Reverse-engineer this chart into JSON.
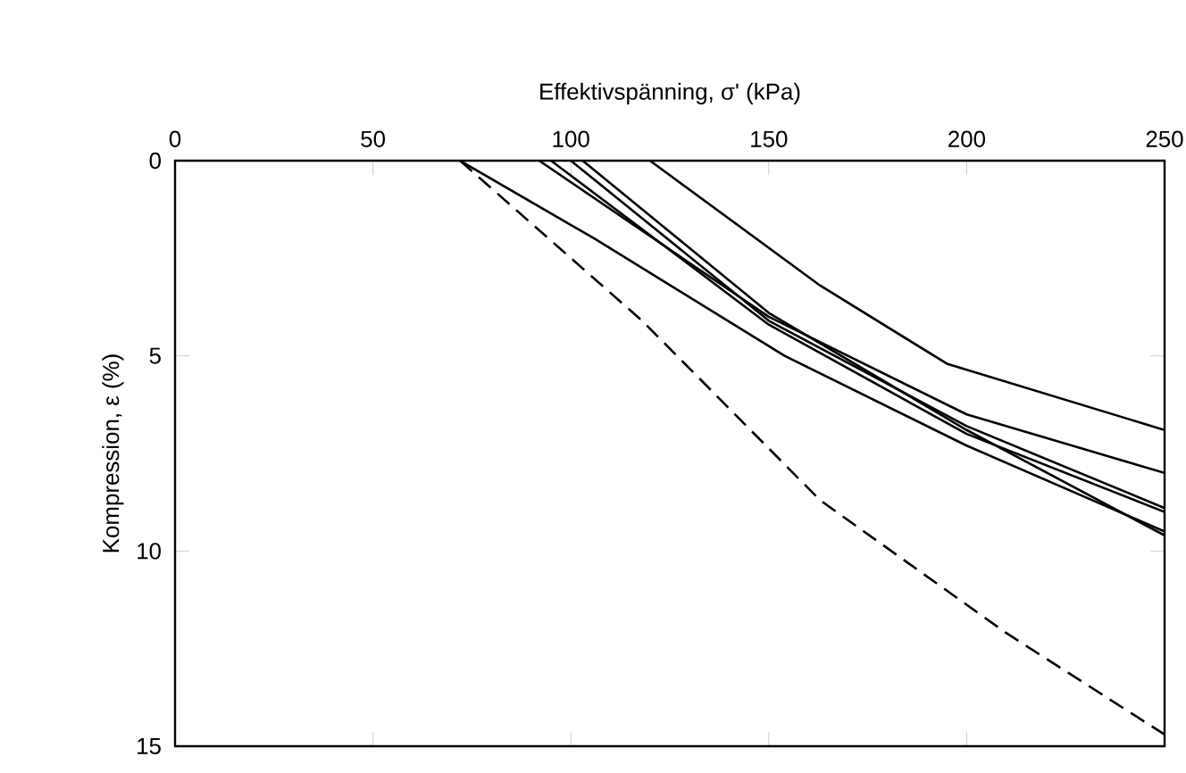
{
  "chart_data": {
    "type": "line",
    "xlabel": "Effektivspänning, σ' (kPa)",
    "ylabel": "Kompression, ε (%)",
    "xlim": [
      0,
      250
    ],
    "ylim": [
      15,
      0
    ],
    "xticks": [
      0,
      50,
      100,
      150,
      200,
      250
    ],
    "yticks": [
      0,
      5,
      10,
      15
    ],
    "marker": "none",
    "line_style": "solid",
    "series": [
      {
        "color": "#000000",
        "line_style": "dashed",
        "x": [
          72,
          118,
          163,
          210,
          250
        ],
        "values": [
          0,
          4.1,
          8.7,
          12.1,
          14.7
        ]
      },
      {
        "color": "#000000",
        "x": [
          72,
          106,
          154,
          200,
          250
        ],
        "values": [
          0,
          2.0,
          5.0,
          7.3,
          9.5
        ]
      },
      {
        "color": "#000000",
        "x": [
          120,
          163,
          195,
          250
        ],
        "values": [
          0,
          3.2,
          5.2,
          6.9
        ]
      },
      {
        "color": "#000000",
        "x": [
          92,
          150,
          200,
          250
        ],
        "values": [
          0,
          4.0,
          6.5,
          8.0
        ]
      },
      {
        "color": "#000000",
        "x": [
          95,
          150,
          200,
          250
        ],
        "values": [
          0,
          4.2,
          7.0,
          9.0
        ]
      },
      {
        "color": "#000000",
        "x": [
          100,
          150,
          200,
          250
        ],
        "values": [
          0,
          4.1,
          6.8,
          8.9
        ]
      },
      {
        "color": "#000000",
        "x": [
          103,
          150,
          200,
          250
        ],
        "values": [
          0,
          3.9,
          6.9,
          9.6
        ]
      }
    ]
  }
}
